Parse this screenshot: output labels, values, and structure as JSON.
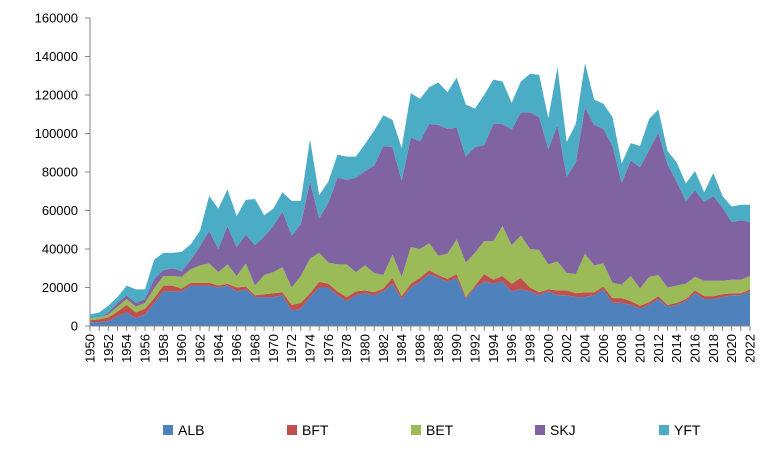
{
  "chart_data": {
    "type": "area",
    "stacked": true,
    "title": "",
    "xlabel": "",
    "ylabel": "",
    "ylim": [
      0,
      160000
    ],
    "yticks": [
      0,
      20000,
      40000,
      60000,
      80000,
      100000,
      120000,
      140000,
      160000
    ],
    "ytick_labels": [
      "0",
      "20000",
      "40000",
      "60000",
      "80000",
      "100000",
      "120000",
      "140000",
      "160000"
    ],
    "xtick_labels": [
      "1950",
      "1952",
      "1954",
      "1956",
      "1958",
      "1960",
      "1962",
      "1964",
      "1966",
      "1968",
      "1970",
      "1972",
      "1974",
      "1976",
      "1978",
      "1980",
      "1982",
      "1984",
      "1986",
      "1988",
      "1990",
      "1992",
      "1994",
      "1996",
      "1998",
      "2000",
      "2002",
      "2004",
      "2006",
      "2008",
      "2010",
      "2012",
      "2014",
      "2016",
      "2018",
      "2020",
      "2022"
    ],
    "grid": false,
    "legend_position": "bottom",
    "x": [
      1950,
      1951,
      1952,
      1953,
      1954,
      1955,
      1956,
      1957,
      1958,
      1959,
      1960,
      1961,
      1962,
      1963,
      1964,
      1965,
      1966,
      1967,
      1968,
      1969,
      1970,
      1971,
      1972,
      1973,
      1974,
      1975,
      1976,
      1977,
      1978,
      1979,
      1980,
      1981,
      1982,
      1983,
      1984,
      1985,
      1986,
      1987,
      1988,
      1989,
      1990,
      1991,
      1992,
      1993,
      1994,
      1995,
      1996,
      1997,
      1998,
      1999,
      2000,
      2001,
      2002,
      2003,
      2004,
      2005,
      2006,
      2007,
      2008,
      2009,
      2010,
      2011,
      2012,
      2013,
      2014,
      2015,
      2016,
      2017,
      2018,
      2019,
      2020,
      2021,
      2022
    ],
    "series": [
      {
        "name": "ALB",
        "color": "#4f81bd",
        "values": [
          2000,
          2000,
          2500,
          5000,
          7000,
          4000,
          6000,
          12000,
          18000,
          18000,
          18000,
          21000,
          21000,
          21000,
          20000,
          21000,
          18000,
          19000,
          15000,
          15000,
          15000,
          16000,
          8000,
          9000,
          15000,
          20000,
          20000,
          16000,
          13000,
          16000,
          17000,
          16000,
          18000,
          22000,
          14000,
          20000,
          23000,
          27000,
          25000,
          23000,
          25000,
          14000,
          20000,
          23000,
          22000,
          23000,
          18000,
          19000,
          18000,
          16000,
          18000,
          16000,
          16000,
          15000,
          15000,
          16000,
          19000,
          12000,
          12000,
          11000,
          9000,
          11000,
          14000,
          10000,
          11000,
          13000,
          17000,
          14000,
          14000,
          15000,
          16000,
          16000,
          18000
        ]
      },
      {
        "name": "BFT",
        "color": "#c0504d",
        "values": [
          1000,
          1500,
          2000,
          2500,
          4000,
          3000,
          3000,
          2500,
          3000,
          3000,
          1500,
          1500,
          1500,
          1500,
          1000,
          1000,
          2000,
          1500,
          1000,
          1500,
          2000,
          1500,
          3000,
          3000,
          2000,
          3000,
          2000,
          2000,
          2000,
          2000,
          1500,
          1500,
          1500,
          3000,
          1500,
          2000,
          2000,
          2000,
          1500,
          1500,
          2000,
          1000,
          1000,
          4000,
          2000,
          3000,
          4000,
          6000,
          2000,
          1500,
          1000,
          2500,
          2500,
          2000,
          2500,
          1500,
          1500,
          2500,
          2500,
          2000,
          1500,
          1500,
          1500,
          1000,
          1000,
          1000,
          1500,
          1500,
          1500,
          1500,
          1000,
          1000,
          1000
        ]
      },
      {
        "name": "BET",
        "color": "#9bbb59",
        "values": [
          1000,
          1000,
          1500,
          2500,
          3000,
          3000,
          3000,
          5000,
          5000,
          5000,
          6000,
          7000,
          9000,
          10000,
          7000,
          10000,
          6000,
          12000,
          5000,
          10000,
          11000,
          13000,
          9000,
          14000,
          18000,
          15000,
          11000,
          14000,
          17000,
          10000,
          13000,
          10000,
          7000,
          12000,
          10000,
          19000,
          15000,
          14000,
          10000,
          13000,
          18000,
          18000,
          17000,
          17000,
          20000,
          26000,
          20000,
          22000,
          20000,
          22000,
          13000,
          15000,
          9000,
          10000,
          20000,
          14000,
          12000,
          8000,
          7000,
          13000,
          9000,
          13000,
          11000,
          9000,
          9000,
          8000,
          7000,
          8000,
          8000,
          7000,
          7000,
          7000,
          7000
        ]
      },
      {
        "name": "SKJ",
        "color": "#8064a2",
        "values": [
          0,
          0,
          1000,
          2000,
          2000,
          2000,
          2000,
          5000,
          3000,
          4000,
          3000,
          5000,
          10000,
          17000,
          12000,
          20000,
          15000,
          15000,
          21000,
          20000,
          24000,
          29000,
          27000,
          27000,
          40000,
          18000,
          31000,
          45000,
          44000,
          49000,
          49000,
          56000,
          67000,
          56000,
          50000,
          57000,
          56000,
          62000,
          68000,
          65000,
          58000,
          55000,
          55000,
          50000,
          61000,
          53000,
          60000,
          64000,
          71000,
          69000,
          60000,
          71000,
          50000,
          58000,
          76000,
          73000,
          70000,
          71000,
          53000,
          60000,
          63000,
          66000,
          74000,
          64000,
          54000,
          43000,
          45000,
          41000,
          44000,
          38000,
          30000,
          31000,
          28000
        ]
      },
      {
        "name": "YFT",
        "color": "#4bacc6",
        "values": [
          2000,
          2500,
          3500,
          3000,
          5000,
          7000,
          5000,
          10000,
          9000,
          8000,
          10000,
          8000,
          8000,
          18000,
          21000,
          19000,
          16000,
          18000,
          24000,
          11000,
          9000,
          10000,
          18000,
          12000,
          22000,
          12000,
          11000,
          12000,
          12000,
          11000,
          14000,
          18000,
          16000,
          14000,
          17000,
          23000,
          22000,
          19000,
          22000,
          19000,
          26000,
          27000,
          20000,
          26000,
          23000,
          22000,
          14000,
          16000,
          20000,
          22000,
          16000,
          30000,
          18000,
          20000,
          23000,
          13000,
          13000,
          15000,
          10000,
          9000,
          11000,
          16000,
          12000,
          7000,
          10000,
          9000,
          10000,
          5000,
          12000,
          6000,
          8000,
          8000,
          9000
        ]
      }
    ]
  }
}
